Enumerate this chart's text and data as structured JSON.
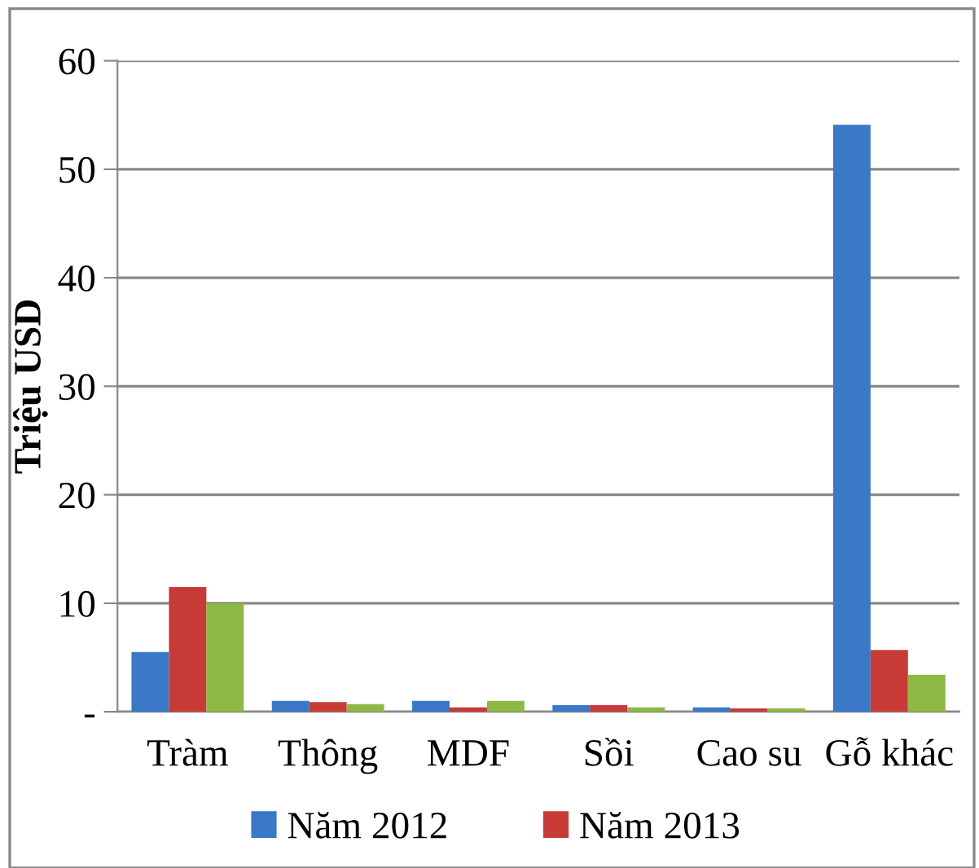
{
  "chart_data": {
    "type": "bar",
    "ylabel": "Triệu USD",
    "categories": [
      "Tràm",
      "Thông",
      "MDF",
      "Sồi",
      "Cao su",
      "Gỗ khác"
    ],
    "series": [
      {
        "name": "Năm 2012",
        "color": "#3a78c8",
        "values": [
          5.5,
          1.0,
          1.0,
          0.6,
          0.4,
          54.1
        ]
      },
      {
        "name": "Năm 2013",
        "color": "#c83a36",
        "values": [
          11.5,
          0.9,
          0.4,
          0.6,
          0.3,
          5.7
        ]
      },
      {
        "color": "#8cb843",
        "values": [
          10.0,
          0.7,
          1.0,
          0.4,
          0.3,
          3.4
        ]
      }
    ],
    "ylim": [
      0,
      60
    ],
    "yticks": [
      {
        "value": 0,
        "label": "-"
      },
      10,
      20,
      30,
      40,
      50,
      60
    ],
    "grid": "y",
    "legend": "bottom"
  }
}
